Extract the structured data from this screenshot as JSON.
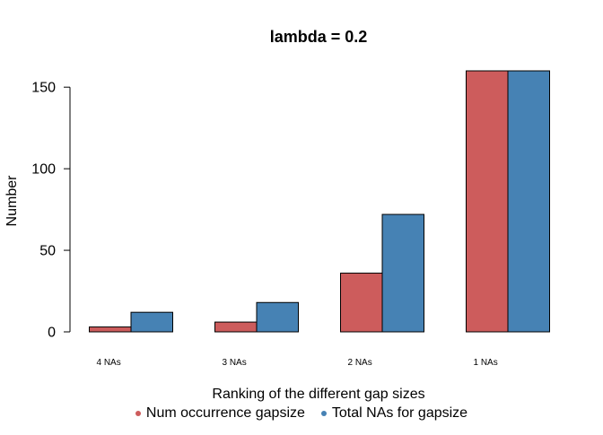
{
  "chart_data": {
    "type": "bar",
    "title": "lambda = 0.2",
    "xlabel": "Ranking of the different gap sizes",
    "ylabel": "Number",
    "categories": [
      "4 NAs",
      "3 NAs",
      "2 NAs",
      "1 NAs"
    ],
    "series": [
      {
        "name": "Num occurrence gapsize",
        "color": "#CD5C5C",
        "values": [
          3,
          6,
          36,
          160
        ]
      },
      {
        "name": "Total NAs for gapsize",
        "color": "#4682B4",
        "values": [
          12,
          18,
          72,
          160
        ]
      }
    ],
    "ylim": [
      0,
      160
    ],
    "yticks": [
      0,
      50,
      100,
      150
    ],
    "grid": false,
    "legend_position": "bottom"
  }
}
